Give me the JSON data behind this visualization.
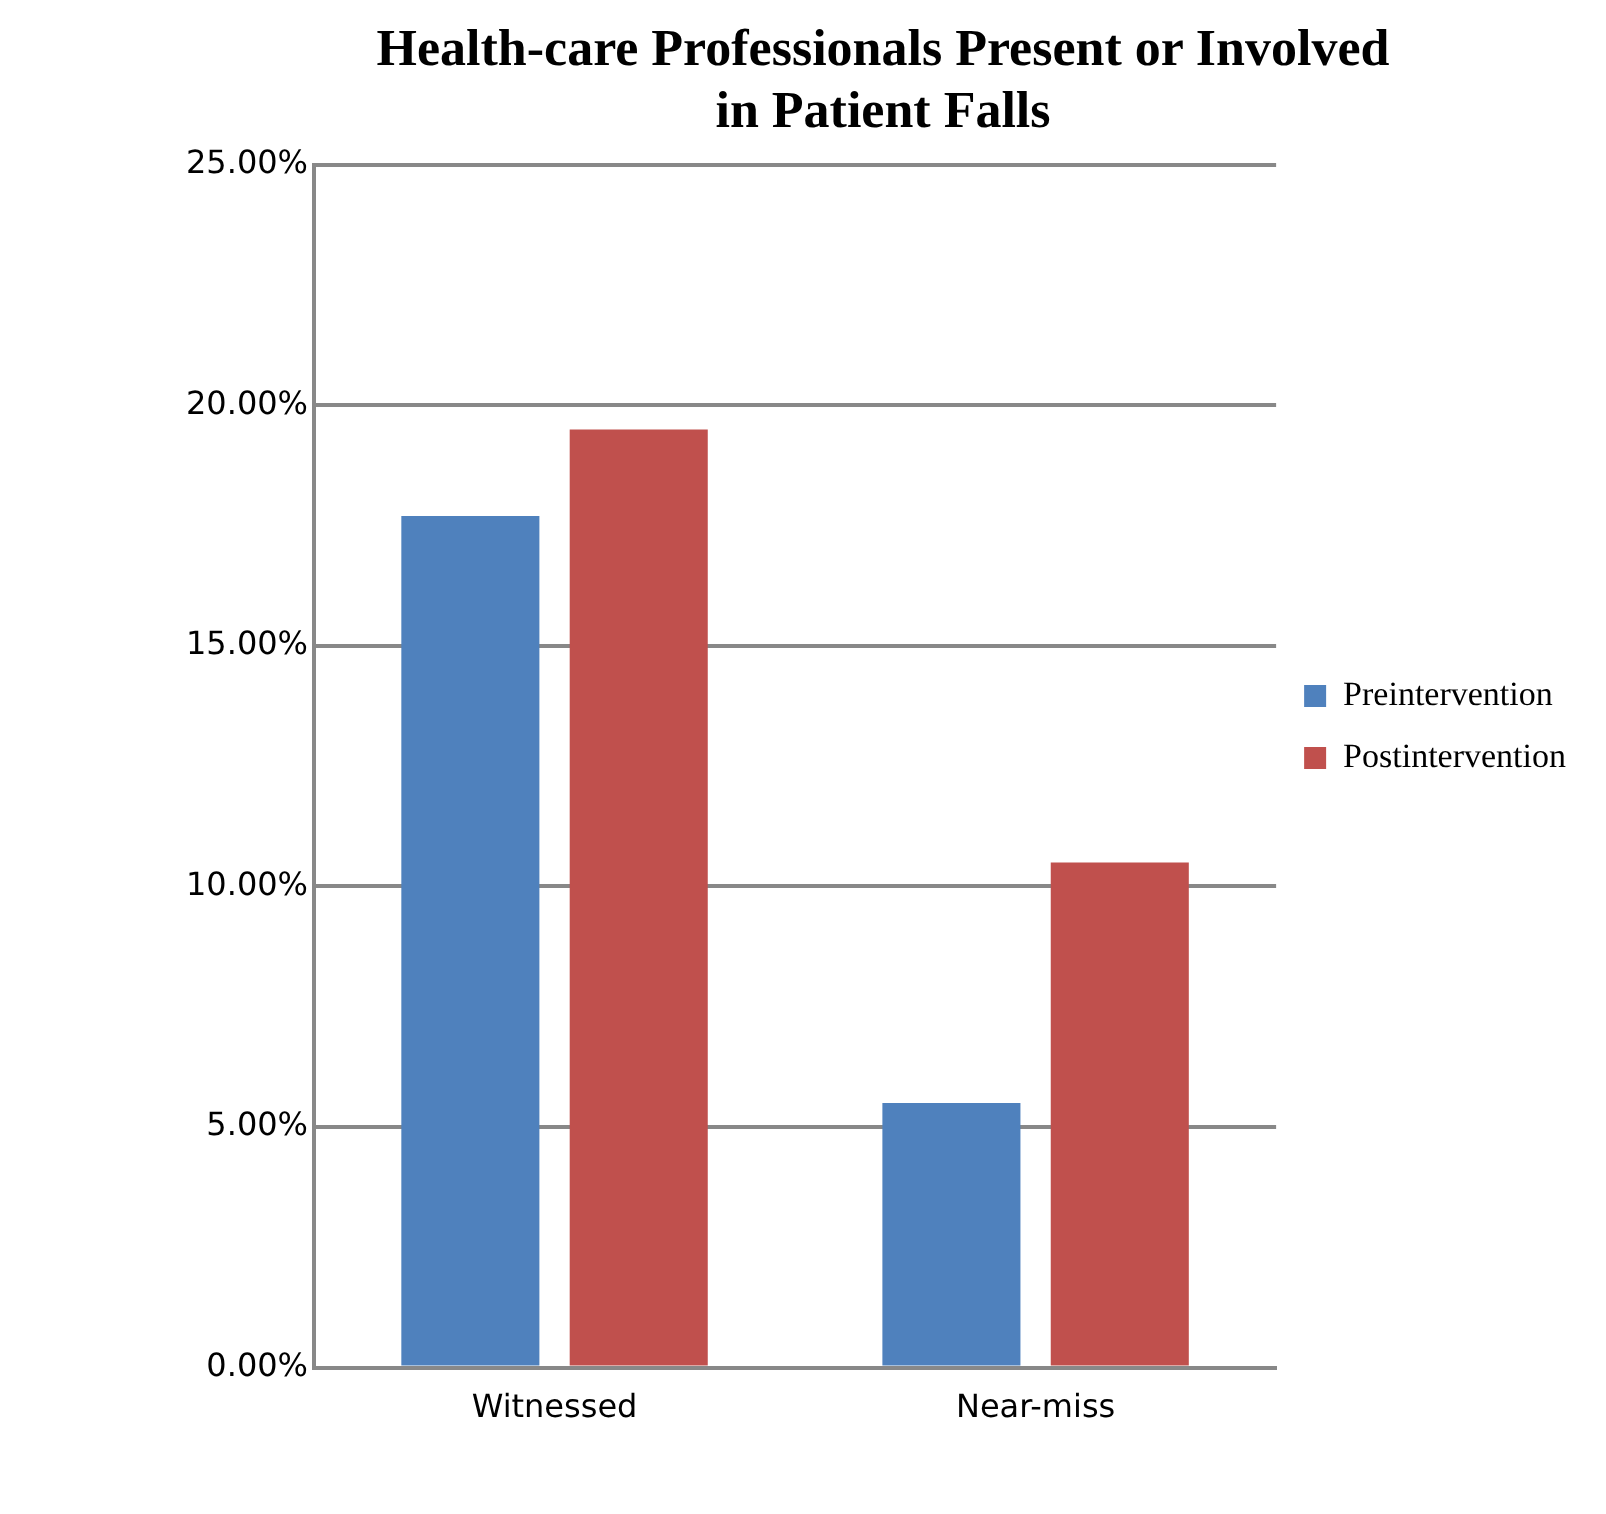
{
  "chart_data": {
    "type": "bar",
    "title": [
      "Health-care Professionals Present or Involved",
      "in Patient Falls"
    ],
    "categories": [
      "Witnessed",
      "Near-miss"
    ],
    "series": [
      {
        "name": "Preintervention",
        "color": "#4f81bd",
        "values": [
          17.7,
          5.5
        ]
      },
      {
        "name": "Postintervention",
        "color": "#c0504d",
        "values": [
          19.5,
          10.5
        ]
      }
    ],
    "ylim": [
      0,
      25
    ],
    "yticks": [
      {
        "value": 0,
        "label": "0.00%"
      },
      {
        "value": 5,
        "label": "5.00%"
      },
      {
        "value": 10,
        "label": "10.00%"
      },
      {
        "value": 15,
        "label": "15.00%"
      },
      {
        "value": 20,
        "label": "20.00%"
      },
      {
        "value": 25,
        "label": "25.00%"
      }
    ],
    "grid": "y",
    "legend": "right"
  }
}
